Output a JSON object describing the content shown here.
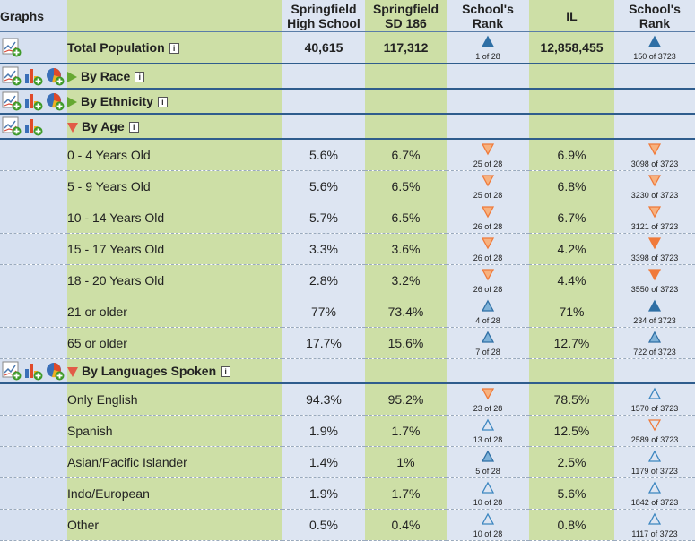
{
  "header": {
    "graphs": "Graphs",
    "school_line1": "Springfield",
    "school_line2": "High School",
    "district_line1": "Springfield",
    "district_line2": "SD 186",
    "rank_line1": "School's",
    "rank_line2": "Rank",
    "state": "IL",
    "state_rank_line1": "School's",
    "state_rank_line2": "Rank"
  },
  "info_glyph": "i",
  "colors": {
    "up_solid": "#2f6fa5",
    "down_solid": "#f07a3a",
    "outline_blue": "#3c86c0",
    "outline_orange": "#f07a3a",
    "label_green": "#cddfa6",
    "cell_blue": "#dde5f2"
  },
  "total": {
    "label": "Total Population",
    "school": "40,615",
    "district": "117,312",
    "rank": "1 of 28",
    "rank_icon": "up-solid",
    "state": "12,858,455",
    "state_rank": "150 of 3723",
    "state_rank_icon": "up-solid"
  },
  "sections": [
    {
      "title": "By Race",
      "expanded": false,
      "icons": [
        "line-graph-icon",
        "bar-graph-icon",
        "pie-graph-icon"
      ],
      "rows": []
    },
    {
      "title": "By Ethnicity",
      "expanded": false,
      "icons": [
        "line-graph-icon",
        "bar-graph-icon",
        "pie-graph-icon"
      ],
      "rows": []
    },
    {
      "title": "By Age",
      "expanded": true,
      "icons": [
        "line-graph-icon",
        "bar-graph-icon"
      ],
      "rows": [
        {
          "label": "0 - 4 Years Old",
          "school": "5.6%",
          "district": "6.7%",
          "rank": "25 of 28",
          "rank_icon": "down-light",
          "state": "6.9%",
          "state_rank": "3098 of 3723",
          "state_rank_icon": "down-light"
        },
        {
          "label": "5 - 9 Years Old",
          "school": "5.6%",
          "district": "6.5%",
          "rank": "25 of 28",
          "rank_icon": "down-light",
          "state": "6.8%",
          "state_rank": "3230 of 3723",
          "state_rank_icon": "down-light"
        },
        {
          "label": "10 - 14 Years Old",
          "school": "5.7%",
          "district": "6.5%",
          "rank": "26 of 28",
          "rank_icon": "down-light",
          "state": "6.7%",
          "state_rank": "3121 of 3723",
          "state_rank_icon": "down-light"
        },
        {
          "label": "15 - 17 Years Old",
          "school": "3.3%",
          "district": "3.6%",
          "rank": "26 of 28",
          "rank_icon": "down-light",
          "state": "4.2%",
          "state_rank": "3398 of 3723",
          "state_rank_icon": "down-solid"
        },
        {
          "label": "18 - 20 Years Old",
          "school": "2.8%",
          "district": "3.2%",
          "rank": "26 of 28",
          "rank_icon": "down-light",
          "state": "4.4%",
          "state_rank": "3550 of 3723",
          "state_rank_icon": "down-solid"
        },
        {
          "label": "21 or older",
          "school": "77%",
          "district": "73.4%",
          "rank": "4 of 28",
          "rank_icon": "up-light",
          "state": "71%",
          "state_rank": "234 of 3723",
          "state_rank_icon": "up-solid"
        },
        {
          "label": "65 or older",
          "school": "17.7%",
          "district": "15.6%",
          "rank": "7 of 28",
          "rank_icon": "up-light",
          "state": "12.7%",
          "state_rank": "722 of 3723",
          "state_rank_icon": "up-light"
        }
      ]
    },
    {
      "title": "By Languages Spoken",
      "expanded": true,
      "icons": [
        "line-graph-icon",
        "bar-graph-icon",
        "pie-graph-icon"
      ],
      "rows": [
        {
          "label": "Only English",
          "school": "94.3%",
          "district": "95.2%",
          "rank": "23 of 28",
          "rank_icon": "down-light",
          "state": "78.5%",
          "state_rank": "1570 of 3723",
          "state_rank_icon": "up-outline"
        },
        {
          "label": "Spanish",
          "school": "1.9%",
          "district": "1.7%",
          "rank": "13 of 28",
          "rank_icon": "up-outline",
          "state": "12.5%",
          "state_rank": "2589 of 3723",
          "state_rank_icon": "down-outline"
        },
        {
          "label": "Asian/Pacific Islander",
          "school": "1.4%",
          "district": "1%",
          "rank": "5 of 28",
          "rank_icon": "up-light",
          "state": "2.5%",
          "state_rank": "1179 of 3723",
          "state_rank_icon": "up-outline"
        },
        {
          "label": "Indo/European",
          "school": "1.9%",
          "district": "1.7%",
          "rank": "10 of 28",
          "rank_icon": "up-outline",
          "state": "5.6%",
          "state_rank": "1842 of 3723",
          "state_rank_icon": "up-outline"
        },
        {
          "label": "Other",
          "school": "0.5%",
          "district": "0.4%",
          "rank": "10 of 28",
          "rank_icon": "up-outline",
          "state": "0.8%",
          "state_rank": "1117 of 3723",
          "state_rank_icon": "up-outline"
        }
      ]
    }
  ]
}
